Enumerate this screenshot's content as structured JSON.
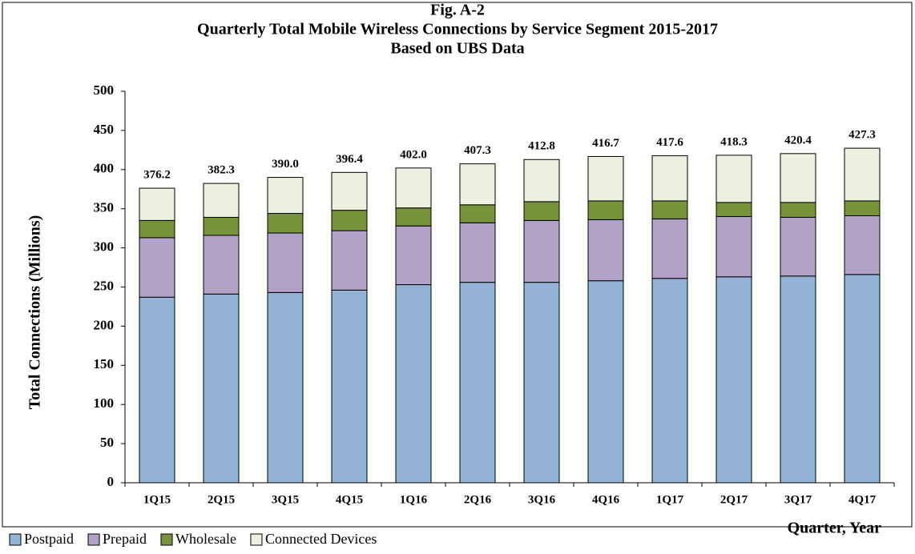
{
  "chart_data": {
    "type": "stacked_bar",
    "title": "Fig. A-2",
    "subtitle": "Quarterly Total Mobile Wireless  Connections by Service Segment 2015-2017",
    "subtitle2": "Based on UBS Data",
    "y_label": "Total Connections (Millions)",
    "x_label": "Quarter, Year",
    "categories": [
      "1Q15",
      "2Q15",
      "3Q15",
      "4Q15",
      "1Q16",
      "2Q16",
      "3Q16",
      "4Q16",
      "1Q17",
      "2Q17",
      "3Q17",
      "4Q17"
    ],
    "series": [
      {
        "name": "Postpaid",
        "color": "#95b3d7",
        "values": [
          237,
          241,
          243,
          246,
          253,
          256,
          256,
          258,
          261,
          263,
          264,
          266
        ]
      },
      {
        "name": "Prepaid",
        "color": "#b3a2c7",
        "values": [
          76,
          75,
          76,
          76,
          75,
          76,
          79,
          78,
          76,
          77,
          75,
          75
        ]
      },
      {
        "name": "Wholesale",
        "color": "#77933c",
        "values": [
          22,
          23,
          25,
          26,
          23,
          23,
          24,
          24,
          23,
          18,
          19,
          19
        ]
      },
      {
        "name": "Connected Devices",
        "color": "#ebf1de",
        "values": [
          41.2,
          43.3,
          46,
          48.4,
          51,
          52.3,
          53.8,
          56.7,
          57.6,
          60.3,
          62.4,
          67.3
        ]
      }
    ],
    "totals": [
      "376.2",
      "382.3",
      "390.0",
      "396.4",
      "402.0",
      "407.3",
      "412.8",
      "416.7",
      "417.6",
      "418.3",
      "420.4",
      "427.3"
    ],
    "ylim": [
      0,
      500
    ],
    "yticks": [
      0,
      50,
      100,
      150,
      200,
      250,
      300,
      350,
      400,
      450,
      500
    ],
    "grid": false,
    "legend": "bottom"
  }
}
